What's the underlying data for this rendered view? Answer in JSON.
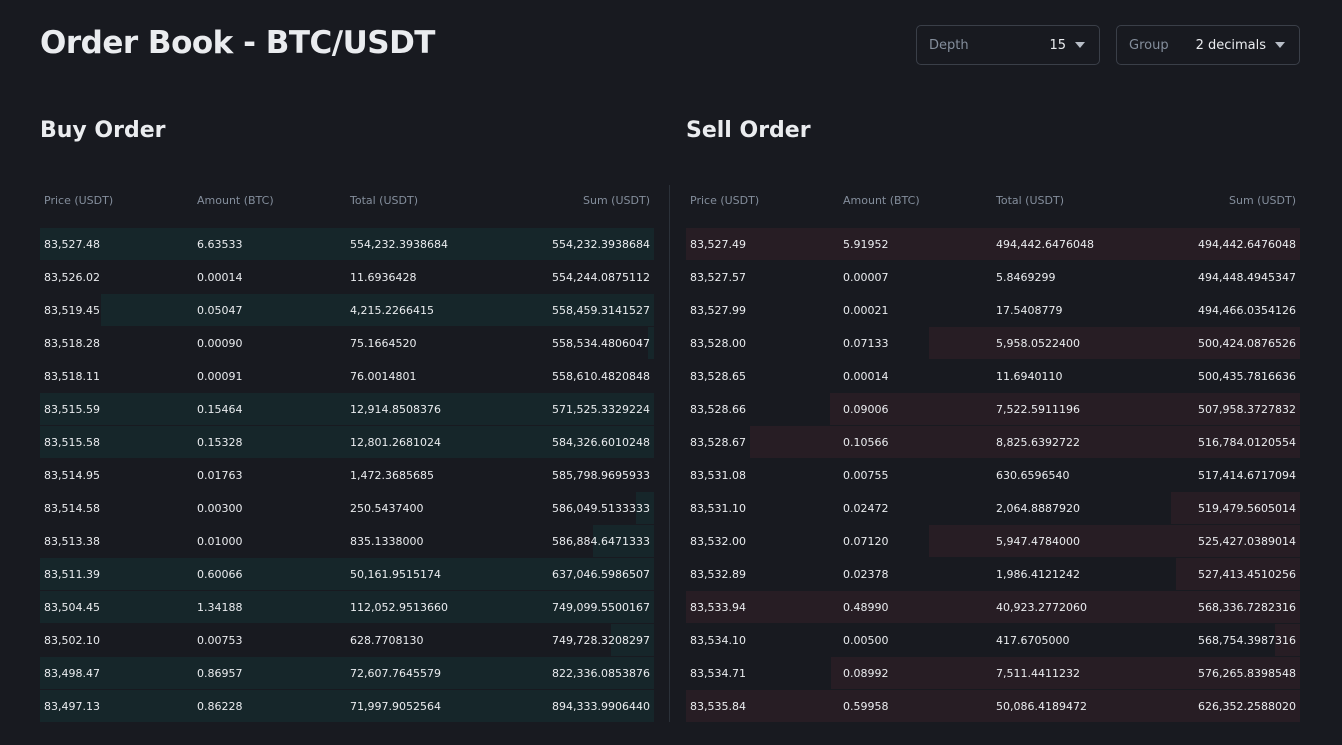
{
  "title": "Order Book - BTC/USDT",
  "controls": {
    "depth": {
      "label": "Depth",
      "value": "15"
    },
    "group": {
      "label": "Group",
      "value": "2 decimals"
    }
  },
  "columns": [
    "Price (USDT)",
    "Amount (BTC)",
    "Total (USDT)",
    "Sum (USDT)"
  ],
  "colors": {
    "background": "#181a20",
    "buy_bar": "#16262a",
    "sell_bar": "#271d24"
  },
  "buy": {
    "title": "Buy Order",
    "rows": [
      {
        "price": "83,527.48",
        "amount": "6.63533",
        "total": "554,232.3938684",
        "sum": "554,232.3938684",
        "depth": 1.0
      },
      {
        "price": "83,526.02",
        "amount": "0.00014",
        "total": "11.6936428",
        "sum": "554,244.0875112",
        "depth": 0.0
      },
      {
        "price": "83,519.45",
        "amount": "0.05047",
        "total": "4,215.2266415",
        "sum": "558,459.3141527",
        "depth": 0.9
      },
      {
        "price": "83,518.28",
        "amount": "0.00090",
        "total": "75.1664520",
        "sum": "558,534.4806047",
        "depth": 0.01
      },
      {
        "price": "83,518.11",
        "amount": "0.00091",
        "total": "76.0014801",
        "sum": "558,610.4820848",
        "depth": 0.0
      },
      {
        "price": "83,515.59",
        "amount": "0.15464",
        "total": "12,914.8508376",
        "sum": "571,525.3329224",
        "depth": 1.0
      },
      {
        "price": "83,515.58",
        "amount": "0.15328",
        "total": "12,801.2681024",
        "sum": "584,326.6010248",
        "depth": 1.0
      },
      {
        "price": "83,514.95",
        "amount": "0.01763",
        "total": "1,472.3685685",
        "sum": "585,798.9695933",
        "depth": 0.0
      },
      {
        "price": "83,514.58",
        "amount": "0.00300",
        "total": "250.5437400",
        "sum": "586,049.5133333",
        "depth": 0.03
      },
      {
        "price": "83,513.38",
        "amount": "0.01000",
        "total": "835.1338000",
        "sum": "586,884.6471333",
        "depth": 0.1
      },
      {
        "price": "83,511.39",
        "amount": "0.60066",
        "total": "50,161.9515174",
        "sum": "637,046.5986507",
        "depth": 1.0
      },
      {
        "price": "83,504.45",
        "amount": "1.34188",
        "total": "112,052.9513660",
        "sum": "749,099.5500167",
        "depth": 1.0
      },
      {
        "price": "83,502.10",
        "amount": "0.00753",
        "total": "628.7708130",
        "sum": "749,728.3208297",
        "depth": 0.07
      },
      {
        "price": "83,498.47",
        "amount": "0.86957",
        "total": "72,607.7645579",
        "sum": "822,336.0853876",
        "depth": 1.0
      },
      {
        "price": "83,497.13",
        "amount": "0.86228",
        "total": "71,997.9052564",
        "sum": "894,333.9906440",
        "depth": 1.0
      }
    ]
  },
  "sell": {
    "title": "Sell Order",
    "rows": [
      {
        "price": "83,527.49",
        "amount": "5.91952",
        "total": "494,442.6476048",
        "sum": "494,442.6476048",
        "depth": 1.0
      },
      {
        "price": "83,527.57",
        "amount": "0.00007",
        "total": "5.8469299",
        "sum": "494,448.4945347",
        "depth": 0.0
      },
      {
        "price": "83,527.99",
        "amount": "0.00021",
        "total": "17.5408779",
        "sum": "494,466.0354126",
        "depth": 0.0
      },
      {
        "price": "83,528.00",
        "amount": "0.07133",
        "total": "5,958.0522400",
        "sum": "500,424.0876526",
        "depth": 0.605
      },
      {
        "price": "83,528.65",
        "amount": "0.00014",
        "total": "11.6940110",
        "sum": "500,435.7816636",
        "depth": 0.0
      },
      {
        "price": "83,528.66",
        "amount": "0.09006",
        "total": "7,522.5911196",
        "sum": "507,958.3727832",
        "depth": 0.765
      },
      {
        "price": "83,528.67",
        "amount": "0.10566",
        "total": "8,825.6392722",
        "sum": "516,784.0120554",
        "depth": 0.896
      },
      {
        "price": "83,531.08",
        "amount": "0.00755",
        "total": "630.6596540",
        "sum": "517,414.6717094",
        "depth": 0.0
      },
      {
        "price": "83,531.10",
        "amount": "0.02472",
        "total": "2,064.8887920",
        "sum": "519,479.5605014",
        "depth": 0.21
      },
      {
        "price": "83,532.00",
        "amount": "0.07120",
        "total": "5,947.4784000",
        "sum": "525,427.0389014",
        "depth": 0.605
      },
      {
        "price": "83,532.89",
        "amount": "0.02378",
        "total": "1,986.4121242",
        "sum": "527,413.4510256",
        "depth": 0.202
      },
      {
        "price": "83,533.94",
        "amount": "0.48990",
        "total": "40,923.2772060",
        "sum": "568,336.7282316",
        "depth": 1.0
      },
      {
        "price": "83,534.10",
        "amount": "0.00500",
        "total": "417.6705000",
        "sum": "568,754.3987316",
        "depth": 0.04
      },
      {
        "price": "83,534.71",
        "amount": "0.08992",
        "total": "7,511.4411232",
        "sum": "576,265.8398548",
        "depth": 0.764
      },
      {
        "price": "83,535.84",
        "amount": "0.59958",
        "total": "50,086.4189472",
        "sum": "626,352.2588020",
        "depth": 1.0
      }
    ]
  }
}
